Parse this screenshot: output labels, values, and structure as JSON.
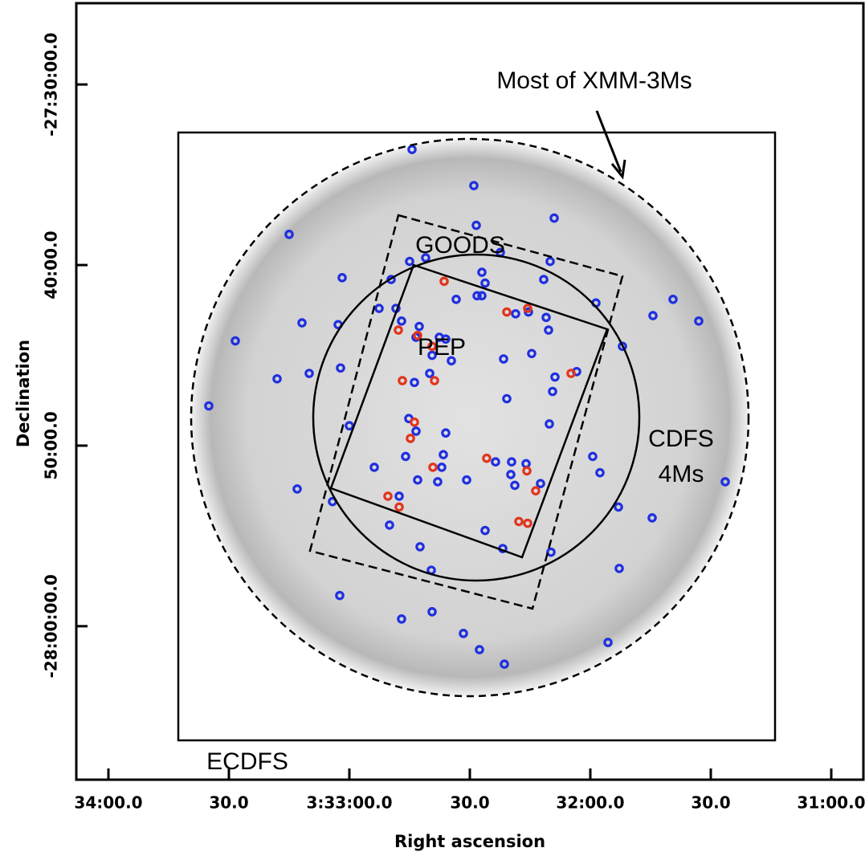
{
  "chart_data": {
    "type": "scatter",
    "xlabel": "Right ascension",
    "ylabel": "Declination",
    "annotations": [
      "Most of XMM-3Ms",
      "GOODS",
      "PEP",
      "CDFS",
      "4Ms",
      "ECDFS"
    ],
    "xlim": [
      12848,
      12652
    ],
    "ylim": [
      -1688.5,
      -1645.5
    ],
    "xticks": [
      {
        "value": 12840,
        "label": "34:00.0"
      },
      {
        "value": 12810,
        "label": "30.0"
      },
      {
        "value": 12780,
        "label": "3:33:00.0"
      },
      {
        "value": 12750,
        "label": "30.0"
      },
      {
        "value": 12720,
        "label": "32:00.0"
      },
      {
        "value": 12690,
        "label": "30.0"
      },
      {
        "value": 12660,
        "label": "31:00.0"
      }
    ],
    "yticks": [
      {
        "value": -1650,
        "label": "-27:30:00.0"
      },
      {
        "value": -1660,
        "label": "40:00.0"
      },
      {
        "value": -1670,
        "label": "50:00.0"
      },
      {
        "value": -1680,
        "label": "-28:00:00.0"
      }
    ],
    "series": [
      {
        "color": "#1f2fe0",
        "x": [
          12764.4,
          12749,
          12795,
          12748.4,
          12729,
          12808.4,
          12781.8,
          12791.8,
          12765,
          12761,
          12742.4,
          12769.6,
          12747,
          12730,
          12746.2,
          12731.6,
          12718.6,
          12815,
          12798,
          12790,
          12782.2,
          12782.8,
          12772.6,
          12768.4,
          12753.4,
          12748.2,
          12747,
          12738.6,
          12735.4,
          12731,
          12730.4,
          12767,
          12762.6,
          12763.4,
          12757.6,
          12756,
          12759.4,
          12754.6,
          12763.8,
          12760,
          12741.6,
          12734.6,
          12704.4,
          12699.4,
          12693,
          12712,
          12740.8,
          12729.4,
          12728.8,
          12723.4,
          12780,
          12765.2,
          12763.4,
          12756,
          12730.2,
          12766,
          12773.8,
          12763,
          12756.6,
          12757,
          12758,
          12750.8,
          12743.6,
          12739.6,
          12736,
          12739.8,
          12738.8,
          12732.4,
          12719.4,
          12717.6,
          12793,
          12784.2,
          12767.6,
          12770,
          12762.4,
          12759.6,
          12746.2,
          12741.8,
          12729.8,
          12713,
          12704.6,
          12712.8,
          12686.4,
          12782.4,
          12767,
          12759.4,
          12751.6,
          12747.6,
          12741.4,
          12715.6
        ],
        "values": [
          -1653.6,
          -1655.6,
          -1658.3,
          -1657.8,
          -1657.4,
          -1664.2,
          -1660.7,
          -1663.2,
          -1659.8,
          -1659.6,
          -1659.3,
          -1660.8,
          -1660.4,
          -1659.8,
          -1661.0,
          -1660.8,
          -1662.1,
          -1667.8,
          -1666.3,
          -1666.0,
          -1665.7,
          -1663.3,
          -1662.4,
          -1662.4,
          -1661.9,
          -1661.7,
          -1661.7,
          -1662.7,
          -1662.6,
          -1662.9,
          -1663.6,
          -1663.1,
          -1663.4,
          -1664.0,
          -1664.0,
          -1664.1,
          -1665.0,
          -1665.3,
          -1666.5,
          -1666.0,
          -1665.2,
          -1664.9,
          -1662.8,
          -1661.9,
          -1663.1,
          -1664.5,
          -1667.4,
          -1667.0,
          -1666.2,
          -1665.9,
          -1668.9,
          -1668.5,
          -1669.2,
          -1669.3,
          -1668.8,
          -1670.6,
          -1671.2,
          -1671.9,
          -1670.5,
          -1671.2,
          -1672.0,
          -1671.9,
          -1670.9,
          -1670.9,
          -1671.0,
          -1671.6,
          -1672.2,
          -1672.1,
          -1670.6,
          -1671.5,
          -1672.4,
          -1673.1,
          -1672.8,
          -1674.4,
          -1675.6,
          -1676.9,
          -1674.7,
          -1675.7,
          -1675.9,
          -1673.4,
          -1674.0,
          -1676.8,
          -1672.0,
          -1678.3,
          -1679.6,
          -1679.2,
          -1680.4,
          -1681.3,
          -1682.1,
          -1680.9
        ]
      },
      {
        "color": "#e2341c",
        "x": [
          12756.4,
          12740.8,
          12735.6,
          12767.8,
          12763,
          12759.4,
          12724.8,
          12766.8,
          12758.8,
          12763.8,
          12764.8,
          12770.4,
          12767.6,
          12759.2,
          12745.8,
          12735.8,
          12733.6,
          12737.8,
          12735.6
        ],
        "values": [
          -1660.9,
          -1662.6,
          -1662.4,
          -1663.6,
          -1663.9,
          -1664.5,
          -1666.0,
          -1666.4,
          -1666.4,
          -1668.7,
          -1669.6,
          -1672.8,
          -1673.4,
          -1671.2,
          -1670.7,
          -1671.4,
          -1672.5,
          -1674.2,
          -1674.3
        ]
      }
    ]
  }
}
